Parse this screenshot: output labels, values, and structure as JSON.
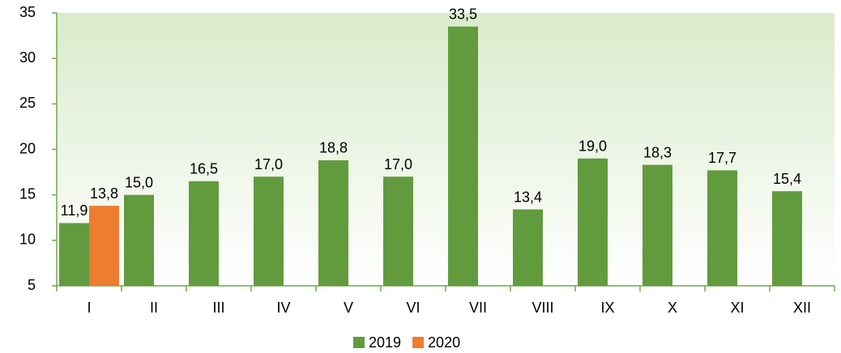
{
  "chart_data": {
    "type": "bar",
    "categories": [
      "I",
      "II",
      "III",
      "IV",
      "V",
      "VI",
      "VII",
      "VIII",
      "IX",
      "X",
      "XI",
      "XII"
    ],
    "series": [
      {
        "name": "2019",
        "color": "#629b3d",
        "values": [
          11.9,
          15.0,
          16.5,
          17.0,
          18.8,
          17.0,
          33.5,
          13.4,
          19.0,
          18.3,
          17.7,
          15.4
        ],
        "value_labels": [
          "11,9",
          "15,0",
          "16,5",
          "17,0",
          "18,8",
          "17,0",
          "33,5",
          "13,4",
          "19,0",
          "18,3",
          "17,7",
          "15,4"
        ]
      },
      {
        "name": "2020",
        "color": "#ed7d31",
        "values": [
          13.8,
          null,
          null,
          null,
          null,
          null,
          null,
          null,
          null,
          null,
          null,
          null
        ],
        "value_labels": [
          "13,8",
          null,
          null,
          null,
          null,
          null,
          null,
          null,
          null,
          null,
          null,
          null
        ]
      }
    ],
    "ylim": [
      5,
      35
    ],
    "yticks": [
      5,
      10,
      15,
      20,
      25,
      30,
      35
    ],
    "legend": "bottom"
  }
}
